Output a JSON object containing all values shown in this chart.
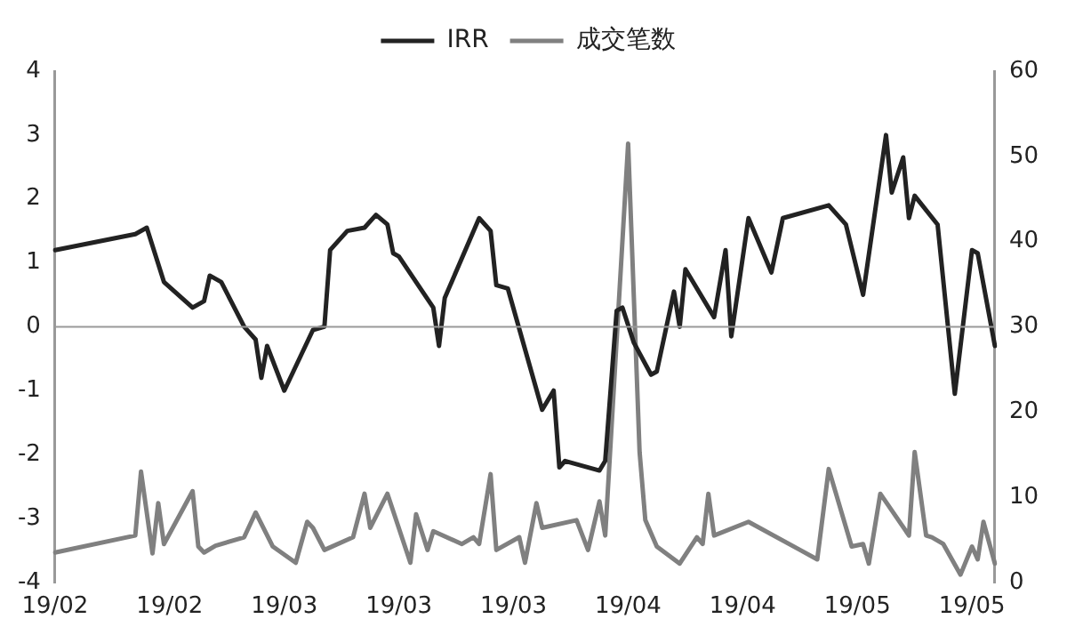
{
  "chart_data": {
    "type": "line",
    "categories": [
      "19/02",
      null,
      null,
      null,
      null,
      null,
      null,
      null,
      null,
      null,
      null,
      null,
      null,
      null,
      null,
      null,
      null,
      null,
      null,
      null,
      "19/02",
      null,
      null,
      null,
      null,
      null,
      null,
      null,
      null,
      null,
      null,
      null,
      null,
      null,
      null,
      null,
      null,
      null,
      null,
      null,
      "19/03",
      null,
      null,
      null,
      null,
      null,
      null,
      null,
      null,
      null,
      null,
      null,
      null,
      null,
      null,
      null,
      null,
      null,
      null,
      null,
      "19/03",
      null,
      null,
      null,
      null,
      null,
      null,
      null,
      null,
      null,
      null,
      null,
      null,
      null,
      null,
      null,
      null,
      null,
      null,
      null,
      "19/03",
      null,
      null,
      null,
      null,
      null,
      null,
      null,
      null,
      null,
      null,
      null,
      null,
      null,
      null,
      null,
      null,
      null,
      null,
      null,
      "19/04",
      null,
      null,
      null,
      null,
      null,
      null,
      null,
      null,
      null,
      null,
      null,
      null,
      null,
      null,
      null,
      null,
      null,
      null,
      null,
      "19/04",
      null,
      null,
      null,
      null,
      null,
      null,
      null,
      null,
      null,
      null,
      null,
      null,
      null,
      null,
      null,
      null,
      null,
      null,
      null,
      "19/05",
      null,
      null,
      null,
      null,
      null,
      null,
      null,
      null,
      null,
      null,
      null,
      null,
      null,
      null,
      null,
      null,
      null,
      null,
      null,
      "19/05",
      null,
      null,
      null,
      null
    ],
    "series": [
      {
        "name": "IRR",
        "color": "#222222",
        "values": [
          1.2,
          null,
          null,
          null,
          null,
          null,
          null,
          null,
          null,
          null,
          null,
          null,
          null,
          null,
          1.45,
          null,
          1.55,
          null,
          null,
          0.7,
          null,
          null,
          null,
          null,
          0.3,
          null,
          0.4,
          0.8,
          null,
          0.7,
          null,
          null,
          null,
          0,
          null,
          -0.2,
          -0.8,
          -0.3,
          null,
          null,
          -1.0,
          null,
          null,
          null,
          null,
          -0.05,
          null,
          0,
          1.2,
          null,
          null,
          1.5,
          null,
          null,
          1.55,
          null,
          1.75,
          null,
          1.6,
          1.15,
          1.1,
          null,
          null,
          null,
          null,
          null,
          0.3,
          -0.3,
          0.45,
          null,
          null,
          null,
          null,
          null,
          1.7,
          null,
          1.5,
          0.65,
          null,
          0.6,
          null,
          null,
          null,
          null,
          null,
          -1.3,
          null,
          -1.0,
          -2.2,
          -2.1,
          null,
          null,
          null,
          null,
          null,
          -2.25,
          -2.1,
          null,
          0.25,
          0.3,
          null,
          -0.25,
          null,
          null,
          -0.75,
          -0.7,
          null,
          null,
          0.55,
          0,
          0.9,
          null,
          null,
          null,
          null,
          0.15,
          null,
          1.2,
          -0.15,
          null,
          null,
          1.7,
          null,
          null,
          null,
          0.85,
          null,
          1.7,
          null,
          null,
          null,
          null,
          null,
          null,
          null,
          1.9,
          null,
          null,
          1.6,
          null,
          null,
          0.5,
          null,
          null,
          null,
          3.0,
          2.1,
          null,
          2.65,
          1.7,
          2.05,
          null,
          null,
          null,
          1.6,
          null,
          null,
          -1.05,
          null,
          null,
          1.2,
          1.15,
          null,
          null,
          -0.3
        ]
      },
      {
        "name": "成交笔数",
        "color": "#808080",
        "axis": "y2",
        "values": [
          3.5,
          null,
          null,
          null,
          null,
          null,
          null,
          null,
          null,
          null,
          null,
          null,
          null,
          null,
          5.5,
          13,
          null,
          3.4,
          9.3,
          4.5,
          null,
          null,
          null,
          null,
          10.7,
          4.2,
          3.5,
          null,
          4.3,
          null,
          null,
          null,
          null,
          5.3,
          null,
          8.2,
          null,
          null,
          4.2,
          null,
          null,
          null,
          2.3,
          null,
          7.1,
          6.4,
          null,
          3.8,
          null,
          null,
          null,
          null,
          5.3,
          null,
          10.4,
          6.4,
          null,
          null,
          10.4,
          null,
          null,
          null,
          2.3,
          8,
          null,
          3.8,
          6,
          null,
          null,
          null,
          null,
          4.5,
          null,
          5.3,
          4.5,
          null,
          12.7,
          3.8,
          null,
          null,
          null,
          5.3,
          2.3,
          null,
          9.3,
          6.4,
          null,
          null,
          null,
          null,
          null,
          7.3,
          null,
          3.8,
          null,
          9.5,
          5.5,
          null,
          null,
          null,
          51.5,
          null,
          15.3,
          7.3,
          null,
          4.2,
          null,
          null,
          null,
          2.2,
          null,
          null,
          5.3,
          4.5,
          10.4,
          5.5,
          null,
          null,
          null,
          null,
          null,
          7.1,
          null,
          null,
          null,
          null,
          null,
          null,
          null,
          null,
          3.8,
          null,
          null,
          2.7,
          null,
          13.3,
          null,
          null,
          null,
          4.2,
          null,
          4.5,
          2.2,
          null,
          10.4,
          null,
          null,
          null,
          null,
          5.5,
          15.3,
          null,
          5.5,
          5.3,
          null,
          4.5,
          null,
          null,
          0.9,
          null,
          4.2,
          2.7,
          7.1,
          null,
          2.2
        ]
      }
    ],
    "ylim": [
      -4,
      4
    ],
    "yticks": [
      -4,
      -3,
      -2,
      -1,
      0,
      1,
      2,
      3,
      4
    ],
    "y2lim": [
      0,
      60
    ],
    "y2ticks": [
      0,
      10,
      20,
      30,
      40,
      50,
      60
    ],
    "ref_lines": [
      {
        "axis": "y",
        "value": 0,
        "color": "#999999"
      }
    ],
    "grid": false,
    "legend": "top",
    "marker": "none",
    "line_style": "solid"
  }
}
